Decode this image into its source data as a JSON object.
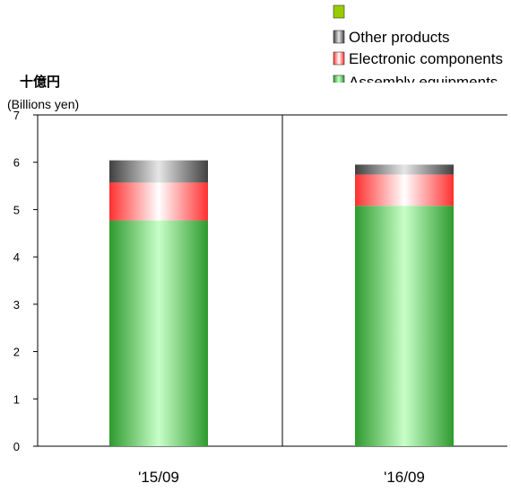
{
  "chart_data": {
    "type": "bar",
    "stacked": true,
    "ylabel_jp": "十億円",
    "ylabel_en": "(Billions yen)",
    "categories": [
      "'15/09",
      "'16/09"
    ],
    "ylim": [
      0,
      7
    ],
    "yticks": [
      "0",
      "1",
      "2",
      "3",
      "4",
      "5",
      "6",
      "7"
    ],
    "series": [
      {
        "name": "Assembly equipments",
        "values": [
          4.77,
          5.08
        ],
        "color": "#2e9a2e",
        "light": "#c8ffc8"
      },
      {
        "name": "Electronic components",
        "values": [
          0.8,
          0.66
        ],
        "color": "#ff3030",
        "light": "#ffffff"
      },
      {
        "name": "Other products",
        "values": [
          0.47,
          0.21
        ],
        "color": "#404040",
        "light": "#e6e6e6"
      }
    ],
    "legend": {
      "placement": "top-right",
      "entries": [
        {
          "label": "",
          "color": "#99cc00"
        },
        {
          "label": "Other products",
          "color": "#404040"
        },
        {
          "label": "Electronic components",
          "color": "#ff3030"
        },
        {
          "label": "Assembly equipments",
          "color": "#2e9a2e"
        }
      ]
    },
    "grid": false
  }
}
